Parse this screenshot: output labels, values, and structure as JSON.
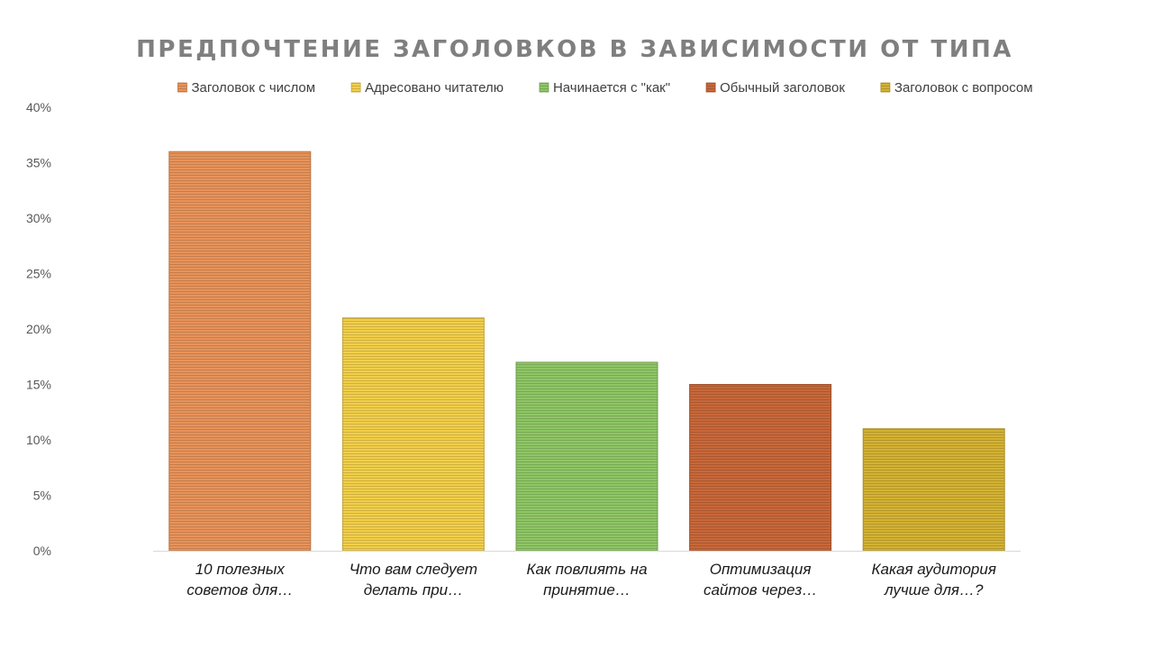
{
  "chart_data": {
    "type": "bar",
    "title": "ПРЕДПОЧТЕНИЕ ЗАГОЛОВКОВ В ЗАВИСИМОСТИ ОТ ТИПА",
    "xlabel": "",
    "ylabel": "",
    "ylim": [
      0,
      40
    ],
    "yticks": [
      "0%",
      "5%",
      "10%",
      "15%",
      "20%",
      "25%",
      "30%",
      "35%",
      "40%"
    ],
    "ytick_values": [
      0,
      5,
      10,
      15,
      20,
      25,
      30,
      35,
      40
    ],
    "grid": false,
    "legend_position": "top",
    "categories": [
      [
        "10 полезных",
        "советов для…"
      ],
      [
        "Что вам следует",
        "делать при…"
      ],
      [
        "Как повлиять на",
        "принятие…"
      ],
      [
        "Оптимизация",
        "сайтов через…"
      ],
      [
        "Какая аудитория",
        "лучше для…?"
      ]
    ],
    "series": [
      {
        "name": "Заголовок с числом",
        "values": [
          36,
          null,
          null,
          null,
          null
        ],
        "color": "#e8935a"
      },
      {
        "name": "Адресовано читателю",
        "values": [
          null,
          21,
          null,
          null,
          null
        ],
        "color": "#f2cf4a"
      },
      {
        "name": "Начинается с \"как\"",
        "values": [
          null,
          null,
          17,
          null,
          null
        ],
        "color": "#8fc665"
      },
      {
        "name": "Обычный заголовок",
        "values": [
          null,
          null,
          null,
          15,
          null
        ],
        "color": "#c8683a"
      },
      {
        "name": "Заголовок с вопросом",
        "values": [
          null,
          null,
          null,
          null,
          11
        ],
        "color": "#d4b233"
      }
    ]
  }
}
